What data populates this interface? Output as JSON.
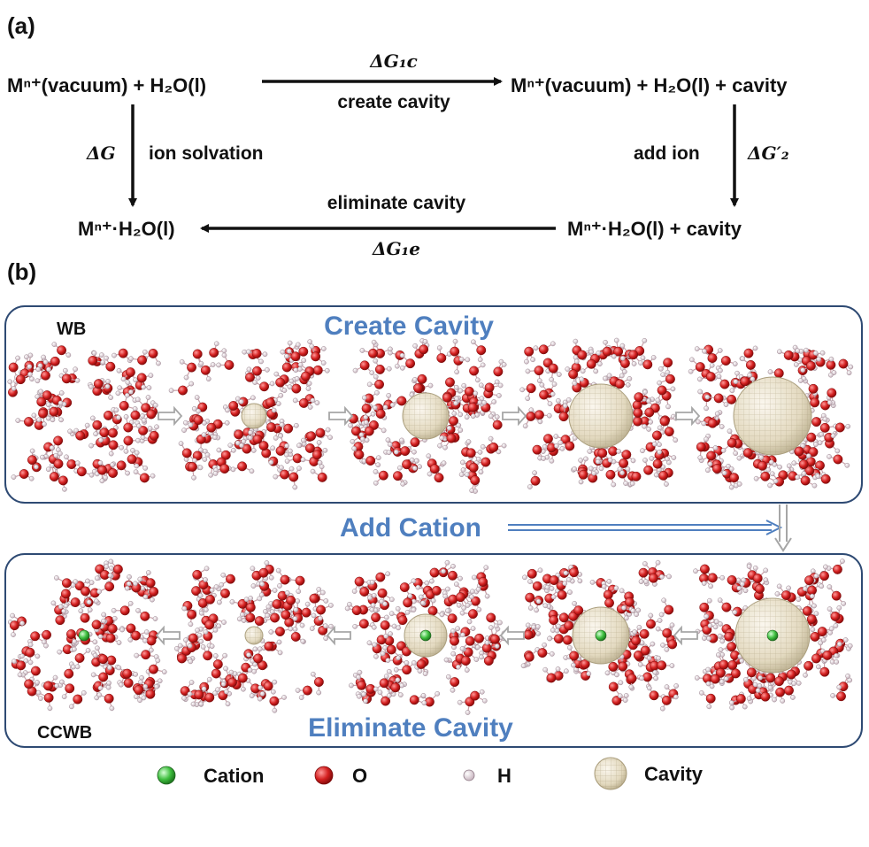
{
  "panel_a": {
    "label": "(a)",
    "top_left": "Mⁿ⁺(vacuum) + H₂O(l)",
    "top_right": "Mⁿ⁺(vacuum) + H₂O(l) + cavity",
    "bottom_left": "Mⁿ⁺·H₂O(l)",
    "bottom_right": "Mⁿ⁺·H₂O(l) + cavity",
    "dg_1c": "ΔG₁c",
    "create_cavity": "create cavity",
    "dg": "ΔG",
    "ion_solvation": "ion solvation",
    "add_ion": "add ion",
    "dg_2": "ΔG′₂",
    "eliminate_cavity": "eliminate cavity",
    "dg_1e": "ΔG₁e"
  },
  "panel_b": {
    "label": "(b)",
    "wb": "WB",
    "ccwb": "CCWB",
    "create_cavity": "Create Cavity",
    "add_cation": "Add Cation",
    "eliminate_cavity": "Eliminate Cavity"
  },
  "legend": {
    "cation": "Cation",
    "o": "O",
    "h": "H",
    "cavity": "Cavity"
  },
  "colors": {
    "oxygen": "#d42020",
    "hydrogen": "#f2e8ee",
    "cation": "#3fbf3f",
    "cavity": "#e6dcc3",
    "title_blue": "#4f7fbf",
    "box_border": "#2e4a73"
  }
}
